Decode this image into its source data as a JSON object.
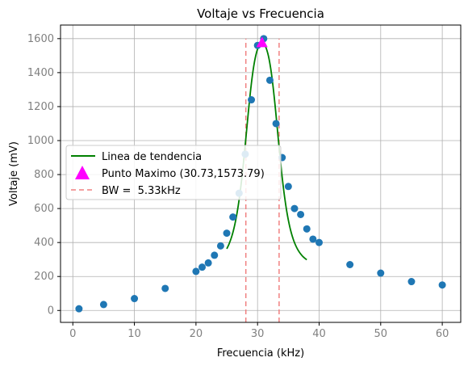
{
  "chart_data": {
    "type": "scatter",
    "title": "Voltaje vs Frecuencia",
    "xlabel": "Frecuencia (kHz)",
    "ylabel": "Voltaje (mV)",
    "xlim": [
      -2,
      63
    ],
    "ylim": [
      -70,
      1680
    ],
    "xticks": [
      0,
      10,
      20,
      30,
      40,
      50,
      60
    ],
    "yticks": [
      0,
      200,
      400,
      600,
      800,
      1000,
      1200,
      1400,
      1600
    ],
    "grid": true,
    "legend_position": "center-left",
    "colors": {
      "points": "#1f77b4",
      "trend": "#008000",
      "peak": "#ff00ff",
      "bandwidth": "#f08080",
      "grid": "#b0b0b0"
    },
    "points": [
      [
        1,
        10
      ],
      [
        5,
        35
      ],
      [
        10,
        70
      ],
      [
        15,
        130
      ],
      [
        20,
        230
      ],
      [
        21,
        255
      ],
      [
        22,
        280
      ],
      [
        23,
        325
      ],
      [
        24,
        380
      ],
      [
        25,
        455
      ],
      [
        26,
        550
      ],
      [
        27,
        690
      ],
      [
        28,
        920
      ],
      [
        29,
        1240
      ],
      [
        30,
        1560
      ],
      [
        31,
        1600
      ],
      [
        32,
        1355
      ],
      [
        33,
        1100
      ],
      [
        34,
        900
      ],
      [
        35,
        730
      ],
      [
        36,
        600
      ],
      [
        37,
        565
      ],
      [
        38,
        480
      ],
      [
        39,
        420
      ],
      [
        40,
        400
      ],
      [
        45,
        270
      ],
      [
        50,
        220
      ],
      [
        55,
        170
      ],
      [
        60,
        150
      ]
    ],
    "trend": {
      "name": "Linea de tendencia",
      "model": "lorentzian",
      "x_start": 25,
      "x_end": 38,
      "peak_x": 30.73,
      "peak_y": 1573.79,
      "half_width": 2.9,
      "baseline": 250
    },
    "peak": {
      "name": "Punto Maximo (30.73,1573.79)",
      "x": 30.73,
      "y": 1573.79
    },
    "bandwidth": {
      "name": "BW =  5.33kHz",
      "x_lines": [
        28.1,
        33.5
      ],
      "y_range": [
        -70,
        1600
      ]
    }
  }
}
